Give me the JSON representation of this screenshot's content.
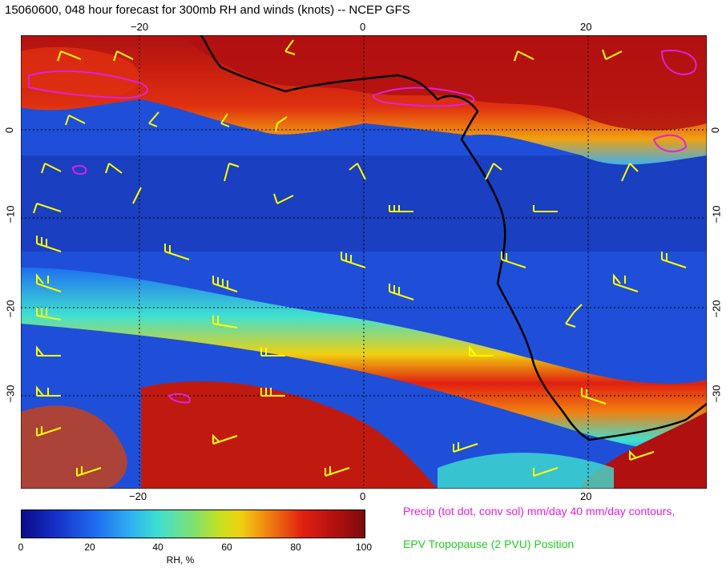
{
  "title": "15060600, 048 hour forecast for 300mb RH and winds (knots) -- NCEP GFS",
  "map": {
    "lon_ticks": [
      "−20",
      "0",
      "20"
    ],
    "lat_ticks": [
      "0",
      "−10",
      "−20",
      "−30"
    ],
    "lat_ticks_right": [
      "0",
      "−10",
      "−20",
      "−30"
    ]
  },
  "colorbar": {
    "ticks": [
      "0",
      "20",
      "40",
      "60",
      "80",
      "100"
    ],
    "label": "RH, %"
  },
  "legend": {
    "precip": "Precip (tot dot, conv sol) mm/day 40 mm/day contours,",
    "epv": "EPV Tropopause (2 PVU) Position"
  },
  "colors": {
    "wind_barbs": "#ffff00",
    "precip_contours": "#e020e0",
    "coastline": "#000000",
    "epv": "#22cc22"
  }
}
